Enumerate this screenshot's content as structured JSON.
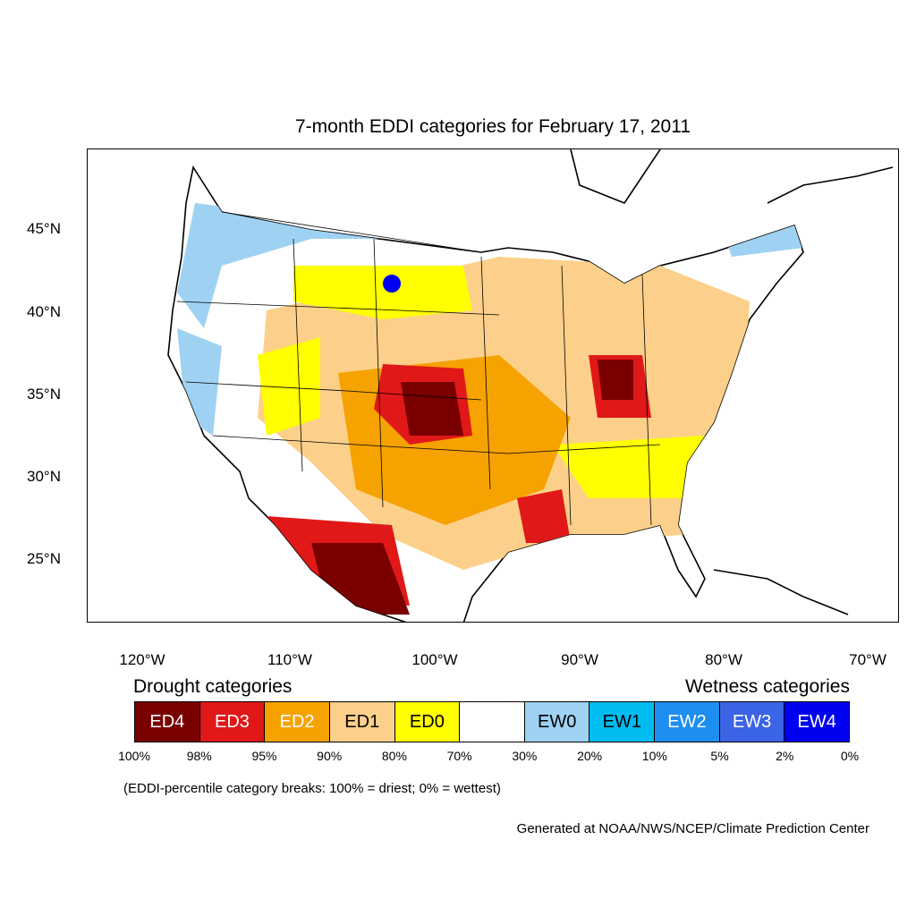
{
  "title": "7-month EDDI categories for February 17, 2011",
  "map": {
    "lat_labels": [
      "45°N",
      "40°N",
      "35°N",
      "30°N",
      "25°N"
    ],
    "lon_labels": [
      "120°W",
      "110°W",
      "100°W",
      "90°W",
      "80°W",
      "70°W"
    ],
    "colors": {
      "ED4": "#7a0000",
      "ED3": "#e01818",
      "ED2": "#f6a200",
      "ED1": "#fcd08a",
      "ED0": "#ffff00",
      "normal": "#ffffff",
      "EW0": "#9fd2f2",
      "EW1": "#00bcf0",
      "EW2": "#1e8ef0",
      "EW3": "#3c64e6",
      "EW4": "#0000f0"
    }
  },
  "legend": {
    "drought_heading": "Drought categories",
    "wetness_heading": "Wetness categories",
    "categories": [
      {
        "label": "ED4",
        "color": "#7a0000",
        "text_color": "#ffffff"
      },
      {
        "label": "ED3",
        "color": "#e01818",
        "text_color": "#ffffff"
      },
      {
        "label": "ED2",
        "color": "#f6a200",
        "text_color": "#ffffff"
      },
      {
        "label": "ED1",
        "color": "#fcd08a",
        "text_color": "#000000"
      },
      {
        "label": "ED0",
        "color": "#ffff00",
        "text_color": "#000000"
      },
      {
        "label": "",
        "color": "#ffffff",
        "text_color": "#000000"
      },
      {
        "label": "EW0",
        "color": "#9fd2f2",
        "text_color": "#000000"
      },
      {
        "label": "EW1",
        "color": "#00bcf0",
        "text_color": "#000000"
      },
      {
        "label": "EW2",
        "color": "#1e8ef0",
        "text_color": "#ffffff"
      },
      {
        "label": "EW3",
        "color": "#3c64e6",
        "text_color": "#ffffff"
      },
      {
        "label": "EW4",
        "color": "#0000f0",
        "text_color": "#ffffff"
      }
    ],
    "percent_breaks": [
      "100%",
      "98%",
      "95%",
      "90%",
      "80%",
      "70%",
      "30%",
      "20%",
      "10%",
      "5%",
      "2%",
      "0%"
    ]
  },
  "breaks_note": "(EDDI-percentile category breaks: 100% = driest; 0% = wettest)",
  "credit": "Generated at NOAA/NWS/NCEP/Climate Prediction Center"
}
